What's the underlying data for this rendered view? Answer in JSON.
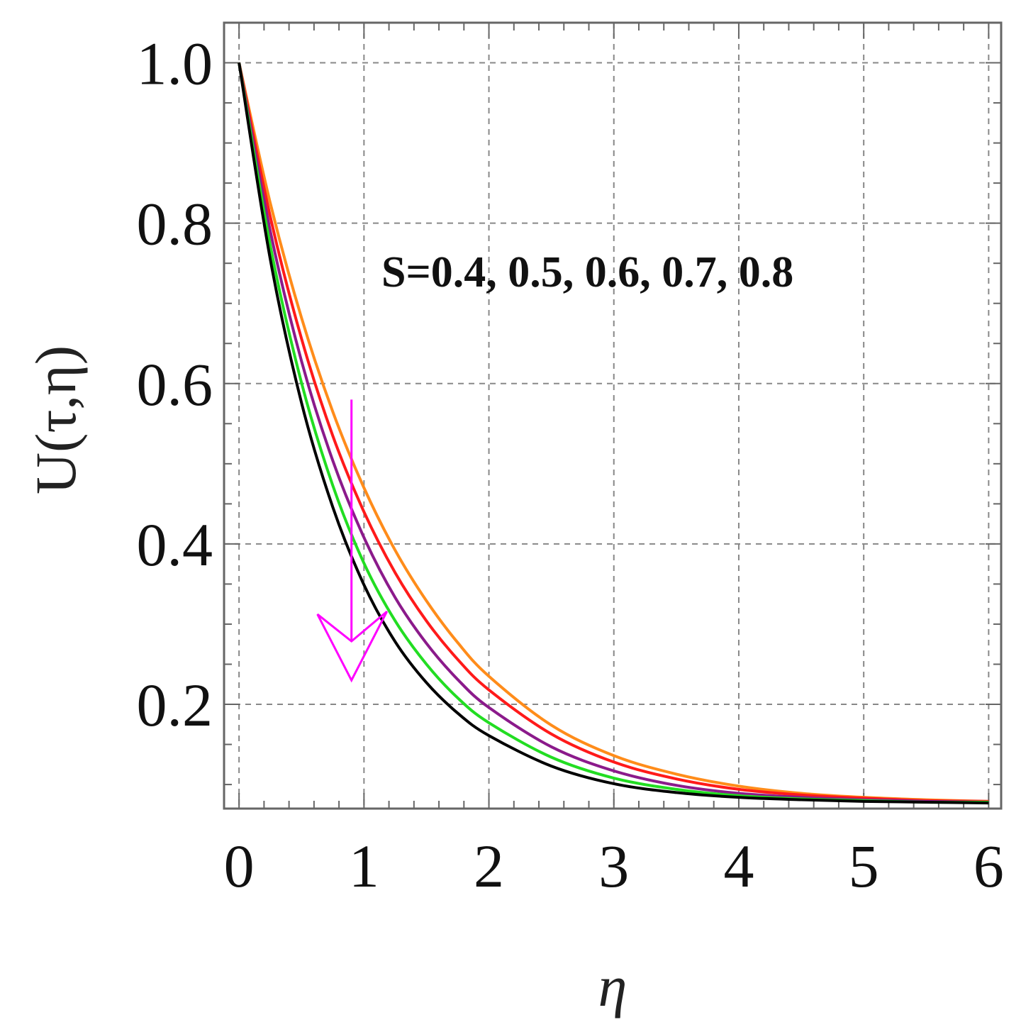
{
  "chart_data": {
    "type": "line",
    "xlabel": "η",
    "ylabel": "U(τ,η)",
    "xlim": [
      -0.12,
      6.1
    ],
    "ylim": [
      0.07,
      1.05
    ],
    "x_ticks": [
      "0",
      "1",
      "2",
      "3",
      "4",
      "5",
      "6"
    ],
    "y_ticks": [
      "0.2",
      "0.4",
      "0.6",
      "0.8",
      "1.0"
    ],
    "grid": true,
    "grid_style": "dashed",
    "annotation": "S=0.4, 0.5, 0.6, 0.7, 0.8",
    "arrow": {
      "x": 0.9,
      "y_from": 0.58,
      "y_to": 0.23,
      "direction": "down",
      "meaning": "increasing S",
      "color": "#ff00ff"
    },
    "series": [
      {
        "color": "#ff8c1a",
        "x": [
          0,
          0.25,
          0.5,
          0.75,
          1.0,
          1.25,
          1.5,
          1.75,
          2.0,
          2.5,
          3.0,
          3.5,
          4.0,
          4.5,
          5.0,
          5.5,
          6.0
        ],
        "values": [
          1.0,
          0.825,
          0.682,
          0.565,
          0.47,
          0.392,
          0.329,
          0.277,
          0.235,
          0.174,
          0.136,
          0.113,
          0.098,
          0.089,
          0.084,
          0.081,
          0.079
        ]
      },
      {
        "color": "#ff1a1a",
        "x": [
          0,
          0.25,
          0.5,
          0.75,
          1.0,
          1.25,
          1.5,
          1.75,
          2.0,
          2.5,
          3.0,
          3.5,
          4.0,
          4.5,
          5.0,
          5.5,
          6.0
        ],
        "values": [
          1.0,
          0.808,
          0.656,
          0.535,
          0.44,
          0.364,
          0.304,
          0.256,
          0.218,
          0.163,
          0.128,
          0.107,
          0.094,
          0.087,
          0.083,
          0.08,
          0.079
        ]
      },
      {
        "color": "#8b1a8b",
        "x": [
          0,
          0.25,
          0.5,
          0.75,
          1.0,
          1.25,
          1.5,
          1.75,
          2.0,
          2.5,
          3.0,
          3.5,
          4.0,
          4.5,
          5.0,
          5.5,
          6.0
        ],
        "values": [
          1.0,
          0.79,
          0.628,
          0.504,
          0.408,
          0.333,
          0.276,
          0.231,
          0.196,
          0.147,
          0.117,
          0.099,
          0.089,
          0.084,
          0.081,
          0.079,
          0.078
        ]
      },
      {
        "color": "#22dd22",
        "x": [
          0,
          0.25,
          0.5,
          0.75,
          1.0,
          1.25,
          1.5,
          1.75,
          2.0,
          2.5,
          3.0,
          3.5,
          4.0,
          4.5,
          5.0,
          5.5,
          6.0
        ],
        "values": [
          1.0,
          0.772,
          0.601,
          0.473,
          0.376,
          0.304,
          0.25,
          0.208,
          0.177,
          0.134,
          0.108,
          0.094,
          0.086,
          0.082,
          0.08,
          0.078,
          0.078
        ]
      },
      {
        "color": "#000000",
        "x": [
          0,
          0.25,
          0.5,
          0.75,
          1.0,
          1.25,
          1.5,
          1.75,
          2.0,
          2.5,
          3.0,
          3.5,
          4.0,
          4.5,
          5.0,
          5.5,
          6.0
        ],
        "values": [
          1.0,
          0.755,
          0.576,
          0.446,
          0.349,
          0.278,
          0.227,
          0.189,
          0.161,
          0.123,
          0.101,
          0.09,
          0.084,
          0.081,
          0.079,
          0.078,
          0.077
        ]
      }
    ]
  }
}
